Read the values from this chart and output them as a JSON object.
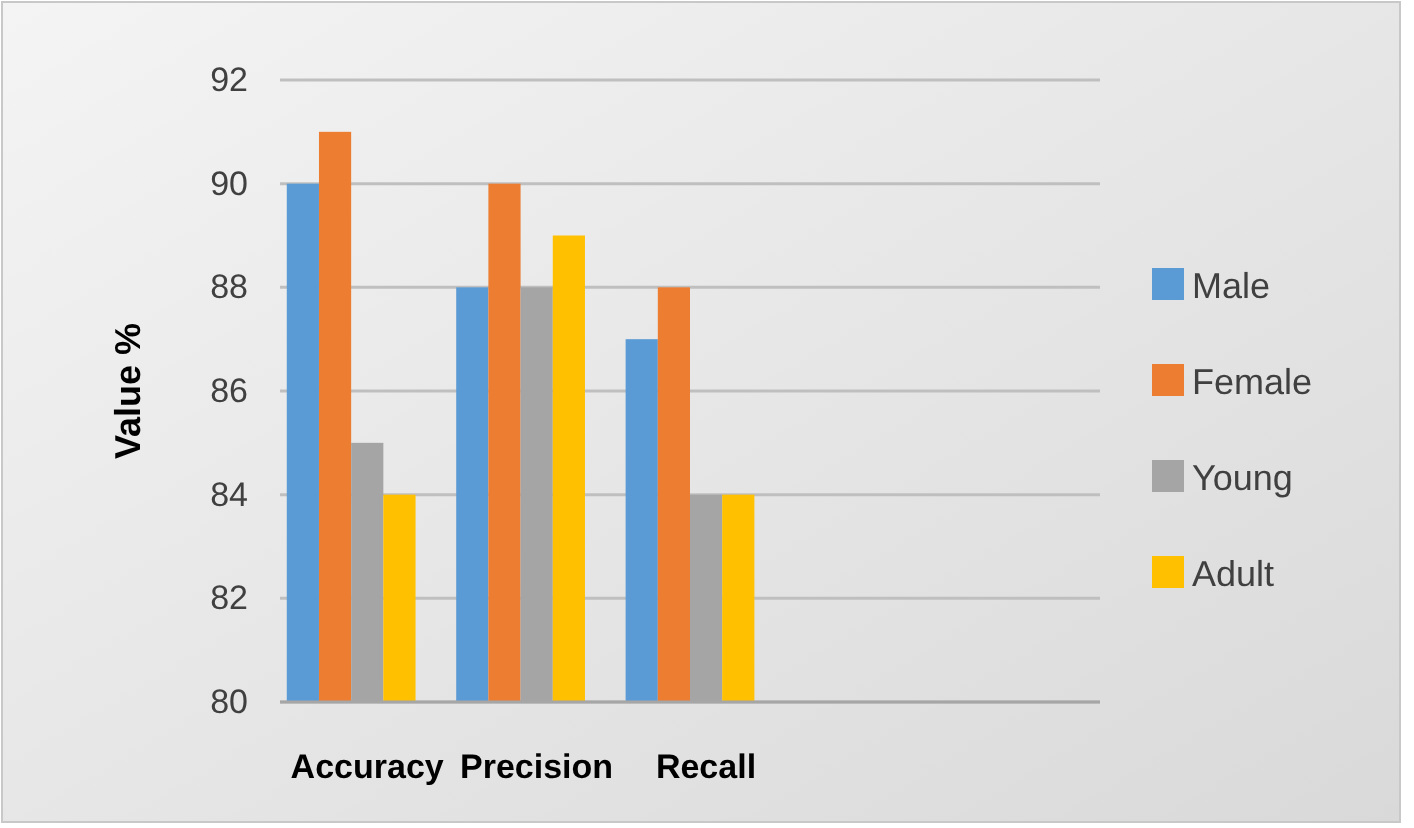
{
  "chart_data": {
    "type": "bar",
    "ylabel": "Value %",
    "categories": [
      "Accuracy",
      "Precision",
      "Recall",
      null,
      null
    ],
    "series": [
      {
        "name": "Male",
        "color": "#5b9bd5",
        "values": [
          90,
          88,
          87,
          null,
          null
        ]
      },
      {
        "name": "Female",
        "color": "#ed7d31",
        "values": [
          91,
          90,
          88,
          null,
          null
        ]
      },
      {
        "name": "Young",
        "color": "#a5a5a5",
        "values": [
          85,
          88,
          84,
          null,
          null
        ]
      },
      {
        "name": "Adult",
        "color": "#ffc000",
        "values": [
          84,
          89,
          84,
          null,
          null
        ]
      }
    ],
    "ylim": [
      80,
      92
    ],
    "yticks": [
      80,
      82,
      84,
      86,
      88,
      90,
      92
    ],
    "grid": "y",
    "legend": "right"
  }
}
